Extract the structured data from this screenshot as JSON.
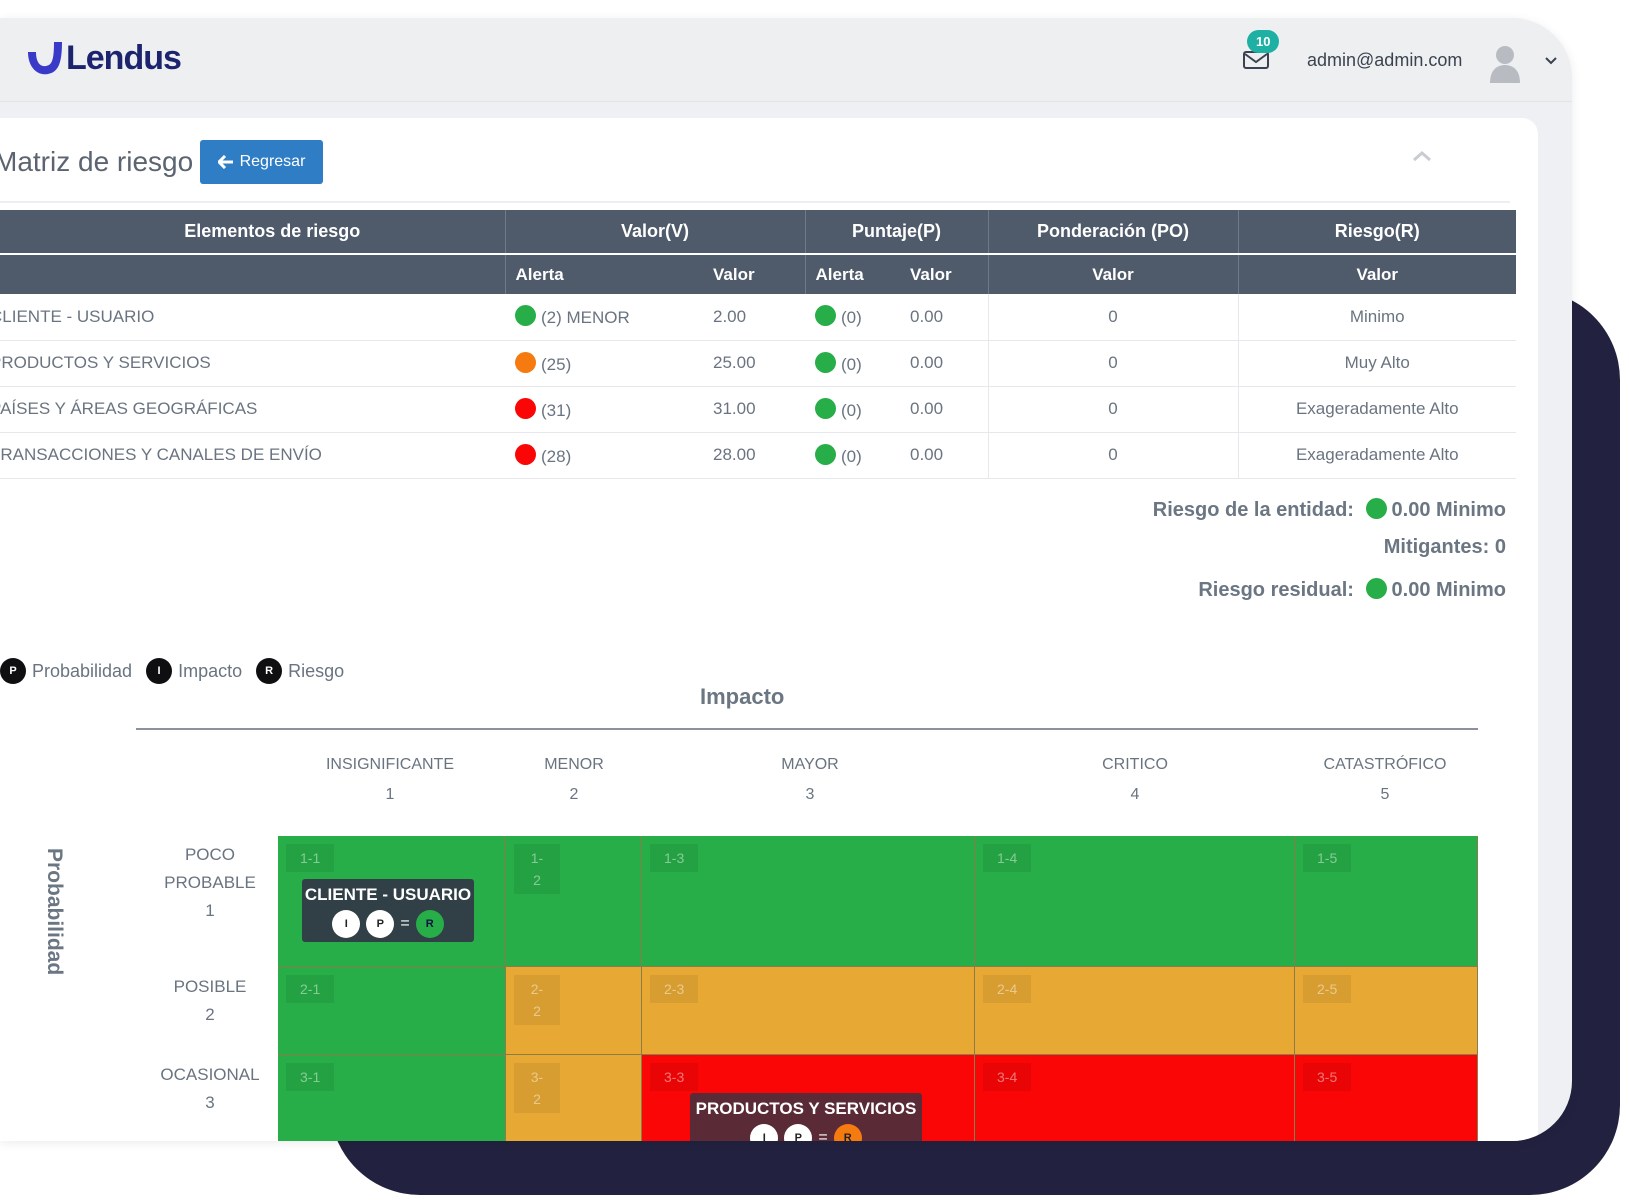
{
  "app": {
    "logo_text": "Lendus",
    "brand_color": "#1c2470",
    "logo_accent": "#3a3ac8"
  },
  "header": {
    "notifications": "10",
    "user_email": "admin@admin.com"
  },
  "page": {
    "title": "Matriz de riesgo",
    "back_label": "Regresar"
  },
  "table": {
    "headers": [
      "Elementos de riesgo",
      "Valor(V)",
      "Puntaje(P)",
      "Ponderación (PO)",
      "Riesgo(R)"
    ],
    "subheaders": {
      "v_alert": "Alerta",
      "v_value": "Valor",
      "p_alert": "Alerta",
      "p_value": "Valor",
      "po_value": "Valor",
      "r_value": "Valor"
    },
    "rows": [
      {
        "element": "CLIENTE - USUARIO",
        "v_color": "#27ae48",
        "v_alert": "(2) MENOR",
        "v_value": "2.00",
        "p_color": "#27ae48",
        "p_alert": "(0)",
        "p_value": "0.00",
        "po": "0",
        "risk": "Minimo"
      },
      {
        "element": "PRODUCTOS Y SERVICIOS",
        "v_color": "#f57a10",
        "v_alert": "(25)",
        "v_value": "25.00",
        "p_color": "#27ae48",
        "p_alert": "(0)",
        "p_value": "0.00",
        "po": "0",
        "risk": "Muy Alto"
      },
      {
        "element": "PAÍSES Y ÁREAS GEOGRÁFICAS",
        "v_color": "#fb0606",
        "v_alert": "(31)",
        "v_value": "31.00",
        "p_color": "#27ae48",
        "p_alert": "(0)",
        "p_value": "0.00",
        "po": "0",
        "risk": "Exageradamente Alto"
      },
      {
        "element": "TRANSACCIONES Y CANALES DE ENVÍO",
        "v_color": "#fb0606",
        "v_alert": "(28)",
        "v_value": "28.00",
        "p_color": "#27ae48",
        "p_alert": "(0)",
        "p_value": "0.00",
        "po": "0",
        "risk": "Exageradamente Alto"
      }
    ]
  },
  "summary": {
    "entity_label": "Riesgo de la entidad:",
    "entity_value": "0.00 Minimo",
    "entity_color": "#27ae48",
    "mitigants_label": "Mitigantes:",
    "mitigants_value": "0",
    "residual_label": "Riesgo residual:",
    "residual_value": "0.00 Minimo",
    "residual_color": "#27ae48"
  },
  "legend": [
    {
      "letter": "P",
      "label": "Probabilidad"
    },
    {
      "letter": "I",
      "label": "Impacto"
    },
    {
      "letter": "R",
      "label": "Riesgo"
    }
  ],
  "matrix": {
    "impact_title": "Impacto",
    "probability_title": "Probabilidad",
    "impact_levels": [
      {
        "name": "INSIGNIFICANTE",
        "num": "1"
      },
      {
        "name": "MENOR",
        "num": "2"
      },
      {
        "name": "MAYOR",
        "num": "3"
      },
      {
        "name": "CRITICO",
        "num": "4"
      },
      {
        "name": "CATASTRÓFICO",
        "num": "5"
      }
    ],
    "probability_levels": [
      {
        "name1": "POCO",
        "name2": "PROBABLE",
        "num": "1"
      },
      {
        "name1": "POSIBLE",
        "name2": "",
        "num": "2"
      },
      {
        "name1": "OCASIONAL",
        "name2": "",
        "num": "3"
      }
    ],
    "cells": [
      [
        "1-1",
        "1-2",
        "1-3",
        "1-4",
        "1-5"
      ],
      [
        "2-1",
        "2-2",
        "2-3",
        "2-4",
        "2-5"
      ],
      [
        "3-1",
        "3-2",
        "3-3",
        "3-4",
        "3-5"
      ]
    ],
    "cell_colors": [
      [
        "green",
        "green",
        "green",
        "green",
        "green"
      ],
      [
        "green",
        "amber",
        "amber",
        "amber",
        "amber"
      ],
      [
        "green",
        "amber",
        "red",
        "red",
        "red"
      ]
    ],
    "cards": [
      {
        "name": "CLIENTE - USUARIO",
        "i": "I",
        "p": "P",
        "eq": "=",
        "r": "R"
      },
      {
        "name": "PRODUCTOS Y SERVICIOS",
        "i": "I",
        "p": "P",
        "eq": "=",
        "r": "R"
      }
    ]
  }
}
